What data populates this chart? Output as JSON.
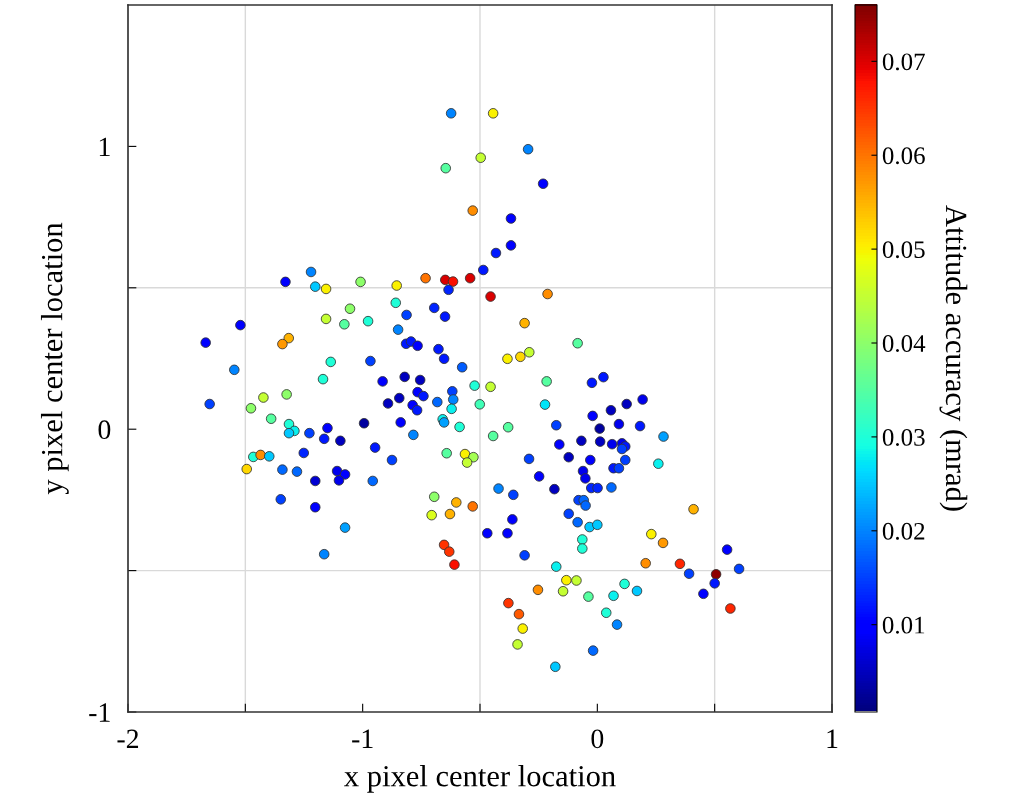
{
  "chart_data": {
    "type": "scatter",
    "xlabel": "x pixel center location",
    "ylabel": "y pixel center location",
    "clabel": "Attitude accuracy (mrad)",
    "xlim": [
      -2,
      1
    ],
    "ylim": [
      -1,
      1.5
    ],
    "xticks": [
      -2,
      {
        "value": -1.5,
        "label": null
      },
      -1,
      {
        "value": -0.5,
        "label": null
      },
      0,
      {
        "value": 0.5,
        "label": null
      },
      1
    ],
    "yticks": [
      -1,
      {
        "value": -0.5,
        "label": null
      },
      0,
      {
        "value": 0.5,
        "label": null
      },
      1
    ],
    "clim": [
      0.0007,
      0.076
    ],
    "cticks": [
      0.01,
      0.02,
      0.03,
      0.04,
      0.05,
      0.06,
      0.07
    ],
    "marker": "circle",
    "grid": false,
    "ref_lines": [
      {
        "axis": "x",
        "value": -1.5,
        "color": "#d9d9d9"
      },
      {
        "axis": "x",
        "value": -0.5,
        "color": "#d9d9d9"
      },
      {
        "axis": "x",
        "value": 0.5,
        "color": "#d9d9d9"
      },
      {
        "axis": "y",
        "value": -0.5,
        "color": "#d9d9d9"
      },
      {
        "axis": "y",
        "value": 0.5,
        "color": "#d9d9d9"
      }
    ],
    "x": [
      -1.22,
      -1.329,
      -1.009,
      -1.202,
      -1.156,
      -1.054,
      -1.521,
      -1.156,
      -1.078,
      -0.977,
      -1.669,
      -1.315,
      -1.342,
      -1.547,
      -1.136,
      -0.967,
      -1.169,
      -1.652,
      -1.423,
      -1.324,
      -1.476,
      -1.39,
      -0.994,
      -1.314,
      -1.15,
      -1.227,
      -1.291,
      -1.314,
      -1.164,
      -1.095,
      -0.947,
      -1.466,
      -1.435,
      -1.398,
      -1.494,
      -1.342,
      -1.28,
      -1.251,
      -1.202,
      -1.109,
      -1.075,
      -1.101,
      -0.957,
      -1.349,
      -1.202,
      -1.075,
      -1.164,
      -0.623,
      -0.444,
      -0.295,
      -0.497,
      -0.646,
      -0.231,
      -0.531,
      -0.368,
      -0.368,
      -0.432,
      -0.486,
      -0.732,
      -0.648,
      -0.615,
      -0.542,
      -0.634,
      -0.455,
      -0.212,
      -0.855,
      -0.859,
      -0.695,
      -0.649,
      -0.813,
      -0.31,
      -0.849,
      -0.084,
      -0.815,
      -0.794,
      -0.766,
      -0.677,
      -0.653,
      -0.383,
      -0.328,
      -0.29,
      -0.576,
      -0.915,
      -0.821,
      -0.755,
      -0.523,
      -0.455,
      -0.216,
      -0.023,
      0.026,
      -0.766,
      -0.741,
      -0.618,
      -0.844,
      -0.892,
      -0.682,
      -0.614,
      -0.787,
      -0.768,
      -0.621,
      -0.501,
      -0.223,
      -0.838,
      -0.659,
      -0.653,
      -0.587,
      -0.38,
      -0.175,
      -0.02,
      0.01,
      0.058,
      -0.784,
      -0.444,
      0.125,
      0.193,
      0.092,
      0.182,
      0.282,
      -0.875,
      -0.642,
      -0.564,
      -0.528,
      -0.555,
      -0.291,
      -0.162,
      -0.068,
      0.012,
      0.063,
      -0.122,
      -0.03,
      -0.061,
      -0.051,
      0.069,
      -0.248,
      -0.183,
      -0.026,
      0.001,
      0.06,
      -0.421,
      -0.358,
      -0.08,
      -0.058,
      -0.05,
      -0.122,
      -0.084,
      -0.033,
      0.0,
      -0.064,
      -0.064,
      -0.362,
      -0.469,
      -0.383,
      -0.31,
      -0.695,
      -0.601,
      -0.531,
      -0.706,
      -0.628,
      -0.653,
      -0.631,
      -0.609,
      -0.175,
      -0.132,
      -0.089,
      -0.146,
      -0.253,
      -0.038,
      0.038,
      -0.379,
      -0.334,
      -0.318,
      -0.34,
      -0.018,
      -0.179,
      0.105,
      0.119,
      0.105,
      0.119,
      0.092,
      0.26,
      0.41,
      0.23,
      0.28,
      0.206,
      0.352,
      0.553,
      0.604,
      0.391,
      0.506,
      0.5,
      0.452,
      0.567,
      0.116,
      0.169,
      0.069,
      0.084
    ],
    "values": [
      0.556,
      0.521,
      0.521,
      0.504,
      0.496,
      0.426,
      0.368,
      0.39,
      0.371,
      0.382,
      0.306,
      0.322,
      0.301,
      0.21,
      0.238,
      0.241,
      0.177,
      0.089,
      0.112,
      0.123,
      0.074,
      0.037,
      0.021,
      0.018,
      0.004,
      -0.014,
      -0.006,
      -0.014,
      -0.034,
      -0.041,
      -0.065,
      -0.098,
      -0.091,
      -0.096,
      -0.141,
      -0.143,
      -0.15,
      -0.084,
      -0.183,
      -0.148,
      -0.16,
      -0.181,
      -0.183,
      -0.248,
      -0.276,
      -0.348,
      -0.442,
      1.117,
      1.117,
      0.99,
      0.96,
      0.923,
      0.868,
      0.773,
      0.745,
      0.65,
      0.623,
      0.563,
      0.534,
      0.528,
      0.522,
      0.534,
      0.493,
      0.469,
      0.478,
      0.508,
      0.447,
      0.429,
      0.398,
      0.404,
      0.375,
      0.352,
      0.304,
      0.302,
      0.31,
      0.295,
      0.283,
      0.249,
      0.249,
      0.256,
      0.272,
      0.219,
      0.169,
      0.185,
      0.174,
      0.154,
      0.15,
      0.169,
      0.164,
      0.184,
      0.131,
      0.117,
      0.134,
      0.11,
      0.091,
      0.096,
      0.105,
      0.085,
      0.067,
      0.072,
      0.088,
      0.087,
      0.024,
      0.035,
      0.024,
      0.008,
      0.007,
      0.014,
      0.047,
      0.002,
      0.067,
      -0.02,
      -0.024,
      0.089,
      0.105,
      0.018,
      0.011,
      -0.026,
      -0.109,
      -0.085,
      -0.088,
      -0.099,
      -0.118,
      -0.105,
      -0.054,
      -0.041,
      -0.044,
      -0.053,
      -0.099,
      -0.109,
      -0.148,
      -0.174,
      -0.138,
      -0.167,
      -0.212,
      -0.208,
      -0.208,
      -0.206,
      -0.21,
      -0.232,
      -0.251,
      -0.251,
      -0.27,
      -0.299,
      -0.329,
      -0.346,
      -0.338,
      -0.39,
      -0.422,
      -0.319,
      -0.368,
      -0.368,
      -0.446,
      -0.239,
      -0.259,
      -0.273,
      -0.304,
      -0.3,
      -0.409,
      -0.433,
      -0.479,
      -0.486,
      -0.534,
      -0.535,
      -0.573,
      -0.568,
      -0.592,
      -0.649,
      -0.615,
      -0.654,
      -0.705,
      -0.761,
      -0.783,
      -0.84,
      -0.05,
      -0.061,
      -0.07,
      -0.109,
      -0.138,
      -0.122,
      -0.283,
      -0.371,
      -0.402,
      -0.474,
      -0.476,
      -0.426,
      -0.494,
      -0.511,
      -0.513,
      -0.545,
      -0.582,
      -0.634,
      -0.547,
      -0.572,
      -0.589,
      -0.691
    ],
    "cvalues": [
      0.02,
      0.01,
      0.04,
      0.025,
      0.05,
      0.04,
      0.01,
      0.045,
      0.035,
      0.03,
      0.01,
      0.055,
      0.057,
      0.02,
      0.03,
      0.015,
      0.03,
      0.015,
      0.045,
      0.04,
      0.04,
      0.035,
      0.003,
      0.03,
      0.01,
      0.015,
      0.028,
      0.025,
      0.012,
      0.005,
      0.012,
      0.03,
      0.058,
      0.025,
      0.052,
      0.018,
      0.018,
      0.013,
      0.006,
      0.008,
      0.01,
      0.008,
      0.018,
      0.015,
      0.01,
      0.022,
      0.02,
      0.02,
      0.05,
      0.02,
      0.045,
      0.035,
      0.01,
      0.058,
      0.01,
      0.01,
      0.012,
      0.012,
      0.06,
      0.07,
      0.068,
      0.07,
      0.013,
      0.07,
      0.058,
      0.05,
      0.03,
      0.013,
      0.012,
      0.015,
      0.055,
      0.02,
      0.035,
      0.012,
      0.012,
      0.01,
      0.012,
      0.012,
      0.05,
      0.052,
      0.045,
      0.017,
      0.01,
      0.005,
      0.005,
      0.03,
      0.045,
      0.035,
      0.012,
      0.012,
      0.01,
      0.012,
      0.015,
      0.005,
      0.005,
      0.018,
      0.02,
      0.01,
      0.012,
      0.028,
      0.033,
      0.027,
      0.01,
      0.028,
      0.022,
      0.03,
      0.035,
      0.015,
      0.01,
      0.003,
      0.005,
      0.02,
      0.035,
      0.005,
      0.008,
      0.008,
      0.012,
      0.022,
      0.015,
      0.035,
      0.05,
      0.042,
      0.045,
      0.015,
      0.01,
      0.005,
      0.005,
      0.008,
      0.005,
      0.01,
      0.008,
      0.008,
      0.012,
      0.01,
      0.005,
      0.013,
      0.013,
      0.018,
      0.02,
      0.015,
      0.015,
      0.018,
      0.018,
      0.015,
      0.018,
      0.025,
      0.025,
      0.03,
      0.03,
      0.01,
      0.01,
      0.01,
      0.015,
      0.04,
      0.055,
      0.06,
      0.047,
      0.055,
      0.065,
      0.065,
      0.068,
      0.028,
      0.05,
      0.045,
      0.045,
      0.058,
      0.035,
      0.03,
      0.065,
      0.062,
      0.05,
      0.045,
      0.018,
      0.025,
      0.008,
      0.012,
      0.015,
      0.015,
      0.015,
      0.028,
      0.055,
      0.05,
      0.057,
      0.058,
      0.066,
      0.01,
      0.015,
      0.015,
      0.075,
      0.012,
      0.01,
      0.066,
      0.03,
      0.025,
      0.028,
      0.02
    ]
  }
}
